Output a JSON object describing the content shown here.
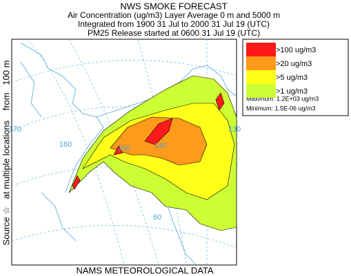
{
  "header": {
    "title": "NWS SMOKE FORECAST",
    "lines": [
      "Air Concentration (ug/m3) Layer Average    0 m and  5000 m",
      "Integrated from 1900 31 Jul to 2000 31 Jul 19 (UTC)",
      "PM25 Release started at 0600 31 Jul 19 (UTC)"
    ]
  },
  "side_label": "Source ☆   at multiple locations    from   100 m",
  "map": {
    "graticule_labels": [
      "170",
      "160",
      "150",
      "140",
      "130",
      "60"
    ]
  },
  "legend": {
    "items": [
      {
        "label": ">100 ug/m3",
        "color": "#ff1a1a"
      },
      {
        "label": ">20 ug/m3",
        "color": "#ff9a1a"
      },
      {
        "label": ">5 ug/m3",
        "color": "#ffff1a"
      },
      {
        "label": ">1 ug/m3",
        "color": "#ccff33"
      }
    ],
    "maximum": "Maximum: 1.2E+03 ug/m3",
    "minimum": "Minimum: 1.5E-06 ug/m3"
  },
  "footer": "NAMS METEOROLOGICAL DATA"
}
